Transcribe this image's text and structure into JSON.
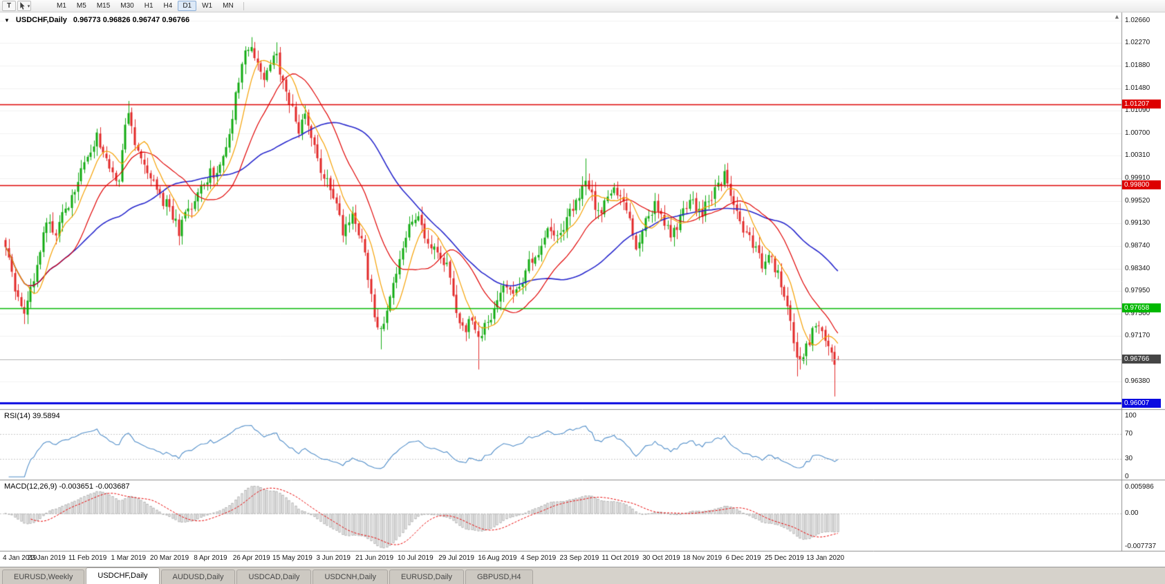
{
  "toolbar": {
    "text_tool": "T",
    "timeframes": [
      "M1",
      "M5",
      "M15",
      "M30",
      "H1",
      "H4",
      "D1",
      "W1",
      "MN"
    ],
    "active_timeframe": "D1"
  },
  "icons": {
    "collapse": "▼",
    "caret": "▾",
    "shift": "▲"
  },
  "chart": {
    "title": "USDCHF,Daily",
    "ohlc": "0.96773 0.96826 0.96747 0.96766",
    "y_axis_labels": [
      "1.02660",
      "1.02270",
      "1.01880",
      "1.01480",
      "1.01090",
      "1.00700",
      "1.00310",
      "0.99910",
      "0.99520",
      "0.99130",
      "0.98740",
      "0.98340",
      "0.97950",
      "0.97560",
      "0.97170",
      "0.96380"
    ],
    "levels": [
      {
        "price": 1.01207,
        "label": "1.01207",
        "color": "#dd0000",
        "thick": false
      },
      {
        "price": 0.998,
        "label": "0.99800",
        "color": "#dd0000",
        "thick": false
      },
      {
        "price": 0.97658,
        "label": "0.97658",
        "color": "#00b800",
        "thick": false
      },
      {
        "price": 0.96007,
        "label": "0.96007",
        "color": "#0a0ae0",
        "thick": true
      }
    ],
    "current_price": {
      "value": 0.96766,
      "label": "0.96766",
      "color": "#454545"
    }
  },
  "rsi": {
    "label": "RSI(14) 39.5894",
    "value": 39.5894,
    "axis_labels": [
      "100",
      "70",
      "30",
      "0"
    ],
    "color": "#4e8cc8"
  },
  "macd": {
    "label": "MACD(12,26,9) -0.003651 -0.003687",
    "macd_value": -0.003651,
    "signal_value": -0.003687,
    "axis_labels": [
      "0.005986",
      "0.00",
      "-0.007737"
    ],
    "signal_color": "#e80000",
    "hist_fill": "#ececec",
    "hist_stroke": "#a0a0a0"
  },
  "x_axis": {
    "labels": [
      {
        "text": "4 Jan 2019",
        "day": 0
      },
      {
        "text": "23 Jan 2019",
        "day": 13
      },
      {
        "text": "11 Feb 2019",
        "day": 26
      },
      {
        "text": "1 Mar 2019",
        "day": 39
      },
      {
        "text": "20 Mar 2019",
        "day": 52
      },
      {
        "text": "8 Apr 2019",
        "day": 65
      },
      {
        "text": "26 Apr 2019",
        "day": 78
      },
      {
        "text": "15 May 2019",
        "day": 91
      },
      {
        "text": "3 Jun 2019",
        "day": 104
      },
      {
        "text": "21 Jun 2019",
        "day": 117
      },
      {
        "text": "10 Jul 2019",
        "day": 130
      },
      {
        "text": "29 Jul 2019",
        "day": 143
      },
      {
        "text": "16 Aug 2019",
        "day": 156
      },
      {
        "text": "4 Sep 2019",
        "day": 169
      },
      {
        "text": "23 Sep 2019",
        "day": 182
      },
      {
        "text": "11 Oct 2019",
        "day": 195
      },
      {
        "text": "30 Oct 2019",
        "day": 208
      },
      {
        "text": "18 Nov 2019",
        "day": 221
      },
      {
        "text": "6 Dec 2019",
        "day": 234
      },
      {
        "text": "25 Dec 2019",
        "day": 247
      },
      {
        "text": "13 Jan 2020",
        "day": 260
      }
    ]
  },
  "tabs": [
    {
      "label": "EURUSD,Weekly",
      "active": false
    },
    {
      "label": "USDCHF,Daily",
      "active": true
    },
    {
      "label": "AUDUSD,Daily",
      "active": false
    },
    {
      "label": "USDCAD,Daily",
      "active": false
    },
    {
      "label": "USDCNH,Daily",
      "active": false
    },
    {
      "label": "EURUSD,Daily",
      "active": false
    },
    {
      "label": "GBPUSD,H4",
      "active": false
    }
  ],
  "colors": {
    "up_candle": "#12ab12",
    "down_candle": "#e22828",
    "grid": "#f0f0f0",
    "guide": "#c6c6c6",
    "panel_divider": "#8c8c8c",
    "price_line": "#b0b0b0"
  },
  "chart_data": {
    "type": "candlestick",
    "symbol": "USDCHF",
    "timeframe": "Daily",
    "candles": 265,
    "last_candle": {
      "o": 0.96773,
      "h": 0.96826,
      "l": 0.96747,
      "c": 0.96766
    },
    "price_range_visible": [
      0.959,
      1.028
    ],
    "waypoints": [
      [
        0,
        0.9868
      ],
      [
        3,
        0.98
      ],
      [
        6,
        0.9762
      ],
      [
        8,
        0.9795
      ],
      [
        11,
        0.9872
      ],
      [
        13,
        0.9918
      ],
      [
        16,
        0.9896
      ],
      [
        19,
        0.9938
      ],
      [
        23,
        0.9985
      ],
      [
        26,
        1.0028
      ],
      [
        29,
        1.0066
      ],
      [
        31,
        1.004
      ],
      [
        33,
        0.9998
      ],
      [
        36,
        0.999
      ],
      [
        38,
        1.0078
      ],
      [
        39,
        1.0105
      ],
      [
        41,
        1.0058
      ],
      [
        44,
        1.001
      ],
      [
        47,
        0.9979
      ],
      [
        50,
        0.9952
      ],
      [
        52,
        0.9938
      ],
      [
        55,
        0.9899
      ],
      [
        58,
        0.9936
      ],
      [
        61,
        0.9962
      ],
      [
        65,
        0.9998
      ],
      [
        68,
        1.0012
      ],
      [
        70,
        1.0048
      ],
      [
        72,
        1.0102
      ],
      [
        74,
        1.0168
      ],
      [
        76,
        1.0208
      ],
      [
        78,
        1.0222
      ],
      [
        80,
        1.0185
      ],
      [
        82,
        1.0158
      ],
      [
        84,
        1.0188
      ],
      [
        86,
        1.0212
      ],
      [
        88,
        1.0152
      ],
      [
        91,
        1.0118
      ],
      [
        93,
        1.0076
      ],
      [
        95,
        1.0105
      ],
      [
        97,
        1.0056
      ],
      [
        100,
        1.0008
      ],
      [
        104,
        0.9958
      ],
      [
        107,
        0.9902
      ],
      [
        110,
        0.9924
      ],
      [
        113,
        0.9886
      ],
      [
        115,
        0.9818
      ],
      [
        117,
        0.9745
      ],
      [
        119,
        0.9726
      ],
      [
        122,
        0.9792
      ],
      [
        125,
        0.9855
      ],
      [
        128,
        0.9902
      ],
      [
        130,
        0.9928
      ],
      [
        133,
        0.9898
      ],
      [
        136,
        0.9868
      ],
      [
        139,
        0.9848
      ],
      [
        141,
        0.9822
      ],
      [
        143,
        0.9762
      ],
      [
        146,
        0.9722
      ],
      [
        148,
        0.9752
      ],
      [
        150,
        0.9712
      ],
      [
        153,
        0.9738
      ],
      [
        156,
        0.9782
      ],
      [
        159,
        0.9812
      ],
      [
        162,
        0.9792
      ],
      [
        165,
        0.9832
      ],
      [
        169,
        0.9868
      ],
      [
        172,
        0.9902
      ],
      [
        175,
        0.9882
      ],
      [
        178,
        0.9922
      ],
      [
        182,
        0.9952
      ],
      [
        184,
        0.9992
      ],
      [
        186,
        0.9962
      ],
      [
        188,
        0.9932
      ],
      [
        191,
        0.9952
      ],
      [
        194,
        0.9972
      ],
      [
        197,
        0.9932
      ],
      [
        200,
        0.9872
      ],
      [
        203,
        0.9912
      ],
      [
        206,
        0.9952
      ],
      [
        208,
        0.9932
      ],
      [
        211,
        0.9892
      ],
      [
        214,
        0.9922
      ],
      [
        217,
        0.9952
      ],
      [
        221,
        0.9932
      ],
      [
        224,
        0.9962
      ],
      [
        228,
        0.9998
      ],
      [
        230,
        0.9962
      ],
      [
        234,
        0.9902
      ],
      [
        237,
        0.9872
      ],
      [
        240,
        0.9842
      ],
      [
        243,
        0.9852
      ],
      [
        245,
        0.9822
      ],
      [
        247,
        0.9792
      ],
      [
        249,
        0.9742
      ],
      [
        251,
        0.9672
      ],
      [
        253,
        0.9682
      ],
      [
        255,
        0.9712
      ],
      [
        257,
        0.9738
      ],
      [
        259,
        0.9718
      ],
      [
        261,
        0.9702
      ],
      [
        263,
        0.9672
      ],
      [
        264,
        0.96766
      ]
    ],
    "spikes": [
      {
        "day": 6,
        "low": 0.9738
      },
      {
        "day": 39,
        "high": 1.0126
      },
      {
        "day": 78,
        "high": 1.0237
      },
      {
        "day": 86,
        "high": 1.0228
      },
      {
        "day": 119,
        "low": 0.9694
      },
      {
        "day": 150,
        "low": 0.9659
      },
      {
        "day": 184,
        "high": 1.0026
      },
      {
        "day": 228,
        "high": 1.0016
      },
      {
        "day": 251,
        "low": 0.9647
      },
      {
        "day": 263,
        "low": 0.9612
      }
    ],
    "moving_averages": [
      {
        "period": 8,
        "color": "#f5a000"
      },
      {
        "period": 20,
        "color": "#e00000"
      },
      {
        "period": 45,
        "color": "#2626cc"
      }
    ]
  }
}
